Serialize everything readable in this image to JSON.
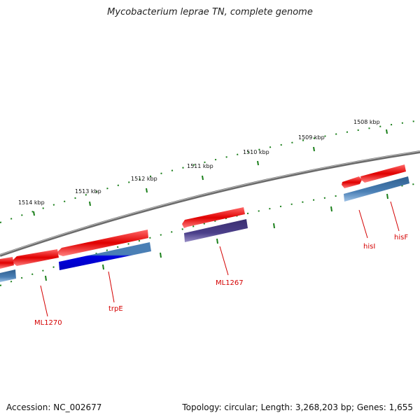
{
  "title": "Mycobacterium leprae TN, complete genome",
  "footer": {
    "accession": "Accession: NC_002677",
    "summary": "Topology: circular; Length: 3,268,203 bp; Genes: 1,655"
  },
  "kbp_labels": [
    "1508 kbp",
    "1509 kbp",
    "1510 kbp",
    "1511 kbp",
    "1512 kbp",
    "1513 kbp",
    "1514 kbp"
  ],
  "gene_labels": [
    "hisF",
    "hisI",
    "ML1267",
    "trpE",
    "ML1270"
  ],
  "colors": {
    "backbone": "#808080",
    "forward_gene": "#e00000",
    "reverse_cds": "#4a7fb5",
    "blue_cds": "#0000e0",
    "purple_cds": "#4b3f8a",
    "tick": "#1a7f1a",
    "label": "#d40000"
  }
}
